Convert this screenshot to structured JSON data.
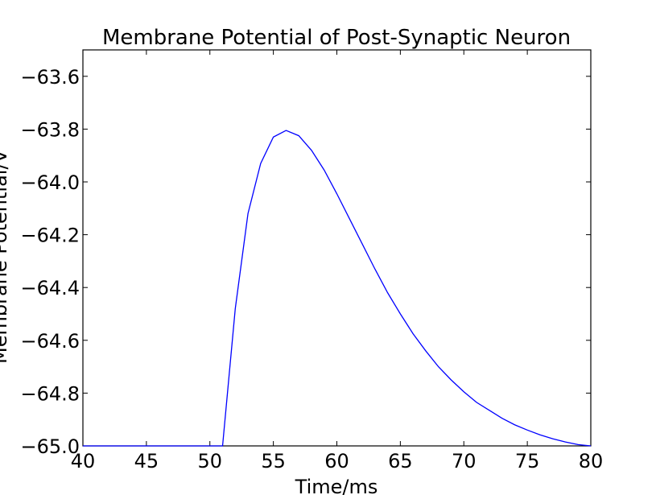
{
  "chart_data": {
    "type": "line",
    "title": "Membrane Potential of Post-Synaptic Neuron",
    "xlabel": "Time/ms",
    "ylabel": "Membrane Potential/V",
    "xlim": [
      40,
      80
    ],
    "ylim": [
      -65.0,
      -63.5
    ],
    "x_ticks": [
      40,
      45,
      50,
      55,
      60,
      65,
      70,
      75,
      80
    ],
    "x_tick_labels": [
      "40",
      "45",
      "50",
      "55",
      "60",
      "65",
      "70",
      "75",
      "80"
    ],
    "y_ticks": [
      -65.0,
      -64.8,
      -64.6,
      -64.4,
      -64.2,
      -64.0,
      -63.8,
      -63.6
    ],
    "y_tick_labels": [
      "−65.0",
      "−64.8",
      "−64.6",
      "−64.4",
      "−64.2",
      "−64.0",
      "−63.8",
      "−63.6"
    ],
    "grid": false,
    "series": [
      {
        "color": "#0000ff",
        "x": [
          40,
          41,
          42,
          43,
          44,
          45,
          46,
          47,
          48,
          49,
          50,
          51,
          52,
          53,
          54,
          55,
          56,
          57,
          58,
          59,
          60,
          61,
          62,
          63,
          64,
          65,
          66,
          67,
          68,
          69,
          70,
          71,
          72,
          73,
          74,
          75,
          76,
          77,
          78,
          79,
          80
        ],
        "y": [
          -65.0,
          -65.0,
          -65.0,
          -65.0,
          -65.0,
          -65.0,
          -65.0,
          -65.0,
          -65.0,
          -65.0,
          -65.0,
          -65.0,
          -64.48,
          -64.12,
          -63.93,
          -63.83,
          -63.805,
          -63.825,
          -63.88,
          -63.955,
          -64.045,
          -64.14,
          -64.235,
          -64.33,
          -64.42,
          -64.5,
          -64.575,
          -64.64,
          -64.7,
          -64.75,
          -64.795,
          -64.835,
          -64.865,
          -64.895,
          -64.92,
          -64.94,
          -64.958,
          -64.973,
          -64.985,
          -64.995,
          -65.0
        ]
      }
    ]
  }
}
